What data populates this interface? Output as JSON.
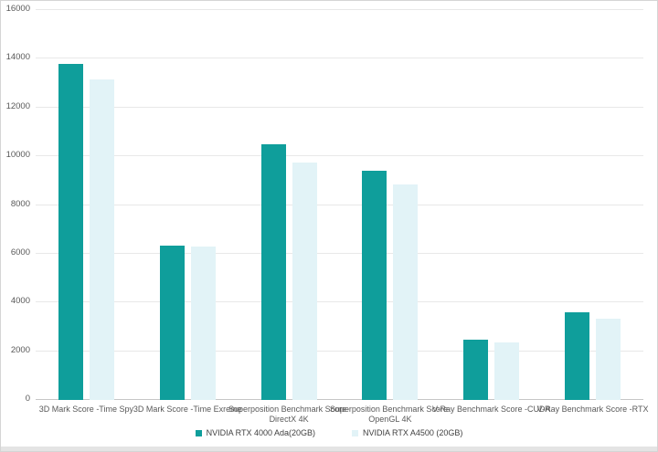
{
  "chart_data": {
    "type": "bar",
    "title": "",
    "xlabel": "",
    "ylabel": "",
    "ylim": [
      0,
      16000
    ],
    "ytick_step": 2000,
    "grid": true,
    "legend_position": "bottom",
    "categories": [
      "3D Mark Score -Time Spy",
      "3D Mark Score -Time Exreme",
      "Superposition Benchmark Score-DirectX 4K",
      "Superposition Benchmark Score-OpenGL 4K",
      "V-Ray Benchmark Score -CUDA",
      "V-Ray Benchmark Score -RTX"
    ],
    "series": [
      {
        "name": "NVIDIA RTX 4000 Ada(20GB)",
        "color": "#0f9e9b",
        "values": [
          13800,
          6350,
          10500,
          9400,
          2480,
          3610
        ]
      },
      {
        "name": "NVIDIA RTX A4500 (20GB)",
        "color": "#e2f3f7",
        "values": [
          13170,
          6280,
          9750,
          8830,
          2370,
          3350
        ]
      }
    ],
    "colors": {
      "gridline": "#e8e8e8",
      "axis_line": "#c6c6c6",
      "tick_text": "#595959",
      "category_text": "#595959",
      "legend_text": "#404040",
      "background": "#ffffff"
    }
  }
}
